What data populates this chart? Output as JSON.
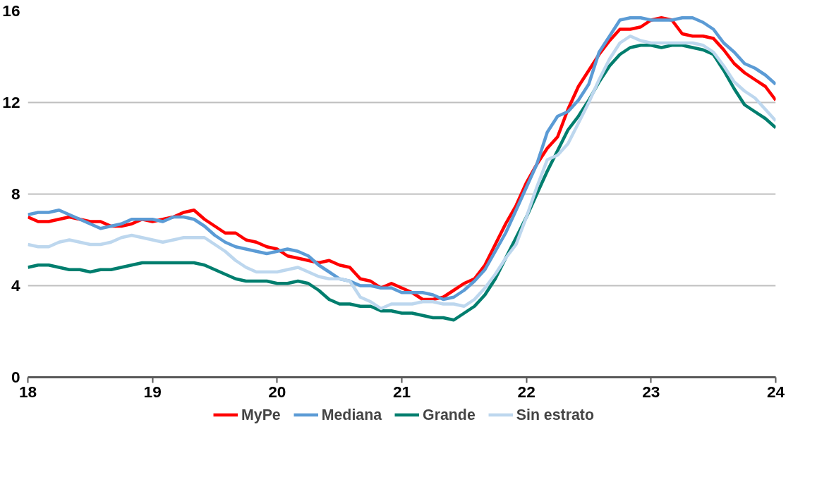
{
  "chart_data": {
    "type": "line",
    "x": [
      18,
      18.083,
      18.167,
      18.25,
      18.333,
      18.417,
      18.5,
      18.583,
      18.667,
      18.75,
      18.833,
      18.917,
      19,
      19.083,
      19.167,
      19.25,
      19.333,
      19.417,
      19.5,
      19.583,
      19.667,
      19.75,
      19.833,
      19.917,
      20,
      20.083,
      20.167,
      20.25,
      20.333,
      20.417,
      20.5,
      20.583,
      20.667,
      20.75,
      20.833,
      20.917,
      21,
      21.083,
      21.167,
      21.25,
      21.333,
      21.417,
      21.5,
      21.583,
      21.667,
      21.75,
      21.833,
      21.917,
      22,
      22.083,
      22.167,
      22.25,
      22.333,
      22.417,
      22.5,
      22.583,
      22.667,
      22.75,
      22.833,
      22.917,
      23,
      23.083,
      23.167,
      23.25,
      23.333,
      23.417,
      23.5,
      23.583,
      23.667,
      23.75,
      23.833,
      23.917,
      24
    ],
    "series": [
      {
        "name": "MyPe",
        "color": "#ff0000",
        "values": [
          7.0,
          6.8,
          6.8,
          6.9,
          7.0,
          6.9,
          6.8,
          6.8,
          6.6,
          6.6,
          6.7,
          6.9,
          6.8,
          6.9,
          7.0,
          7.2,
          7.3,
          6.9,
          6.6,
          6.3,
          6.3,
          6.0,
          5.9,
          5.7,
          5.6,
          5.3,
          5.2,
          5.1,
          5.0,
          5.1,
          4.9,
          4.8,
          4.3,
          4.2,
          3.9,
          4.1,
          3.9,
          3.7,
          3.4,
          3.4,
          3.5,
          3.8,
          4.1,
          4.3,
          4.9,
          5.8,
          6.7,
          7.5,
          8.5,
          9.3,
          10.0,
          10.5,
          11.7,
          12.7,
          13.4,
          14.1,
          14.7,
          15.2,
          15.2,
          15.3,
          15.6,
          15.7,
          15.6,
          15.0,
          14.9,
          14.9,
          14.8,
          14.3,
          13.7,
          13.3,
          13.0,
          12.7,
          12.1
        ]
      },
      {
        "name": "Mediana",
        "color": "#5b9bd5",
        "values": [
          7.1,
          7.2,
          7.2,
          7.3,
          7.1,
          6.9,
          6.7,
          6.5,
          6.6,
          6.7,
          6.9,
          6.9,
          6.9,
          6.8,
          7.0,
          7.0,
          6.9,
          6.6,
          6.2,
          5.9,
          5.7,
          5.6,
          5.5,
          5.4,
          5.5,
          5.6,
          5.5,
          5.3,
          4.9,
          4.6,
          4.3,
          4.2,
          4.0,
          4.0,
          3.9,
          3.9,
          3.7,
          3.7,
          3.7,
          3.6,
          3.4,
          3.5,
          3.8,
          4.2,
          4.7,
          5.5,
          6.3,
          7.3,
          8.3,
          9.3,
          10.7,
          11.4,
          11.6,
          12.1,
          12.8,
          14.2,
          14.9,
          15.6,
          15.7,
          15.7,
          15.6,
          15.6,
          15.6,
          15.7,
          15.7,
          15.5,
          15.2,
          14.6,
          14.2,
          13.7,
          13.5,
          13.2,
          12.8
        ]
      },
      {
        "name": "Grande",
        "color": "#007e6e",
        "values": [
          4.8,
          4.9,
          4.9,
          4.8,
          4.7,
          4.7,
          4.6,
          4.7,
          4.7,
          4.8,
          4.9,
          5.0,
          5.0,
          5.0,
          5.0,
          5.0,
          5.0,
          4.9,
          4.7,
          4.5,
          4.3,
          4.2,
          4.2,
          4.2,
          4.1,
          4.1,
          4.2,
          4.1,
          3.8,
          3.4,
          3.2,
          3.2,
          3.1,
          3.1,
          2.9,
          2.9,
          2.8,
          2.8,
          2.7,
          2.6,
          2.6,
          2.5,
          2.8,
          3.1,
          3.6,
          4.3,
          5.2,
          6.1,
          7.0,
          8.0,
          9.0,
          9.9,
          10.8,
          11.4,
          12.1,
          12.9,
          13.6,
          14.1,
          14.4,
          14.5,
          14.5,
          14.4,
          14.5,
          14.5,
          14.4,
          14.3,
          14.1,
          13.4,
          12.6,
          11.9,
          11.6,
          11.3,
          10.9
        ]
      },
      {
        "name": "Sin estrato",
        "color": "#bdd7ee",
        "values": [
          5.8,
          5.7,
          5.7,
          5.9,
          6.0,
          5.9,
          5.8,
          5.8,
          5.9,
          6.1,
          6.2,
          6.1,
          6.0,
          5.9,
          6.0,
          6.1,
          6.1,
          6.1,
          5.8,
          5.5,
          5.1,
          4.8,
          4.6,
          4.6,
          4.6,
          4.7,
          4.8,
          4.6,
          4.4,
          4.3,
          4.3,
          4.2,
          3.5,
          3.3,
          3.0,
          3.2,
          3.2,
          3.2,
          3.3,
          3.3,
          3.2,
          3.2,
          3.1,
          3.4,
          3.9,
          4.5,
          5.2,
          5.8,
          7.0,
          8.3,
          9.5,
          9.7,
          10.2,
          11.1,
          12.0,
          13.0,
          13.9,
          14.6,
          14.9,
          14.7,
          14.6,
          14.6,
          14.6,
          14.6,
          14.6,
          14.5,
          14.2,
          13.6,
          12.9,
          12.5,
          12.2,
          11.7,
          11.2
        ]
      }
    ],
    "xlim": [
      18,
      24
    ],
    "xticks": [
      18,
      19,
      20,
      21,
      22,
      23,
      24
    ],
    "ylim": [
      0,
      16
    ],
    "yticks": [
      0,
      4,
      8,
      12,
      16
    ],
    "grid": "y",
    "legend": "bottom",
    "marker": "none",
    "line_style": "solid"
  }
}
